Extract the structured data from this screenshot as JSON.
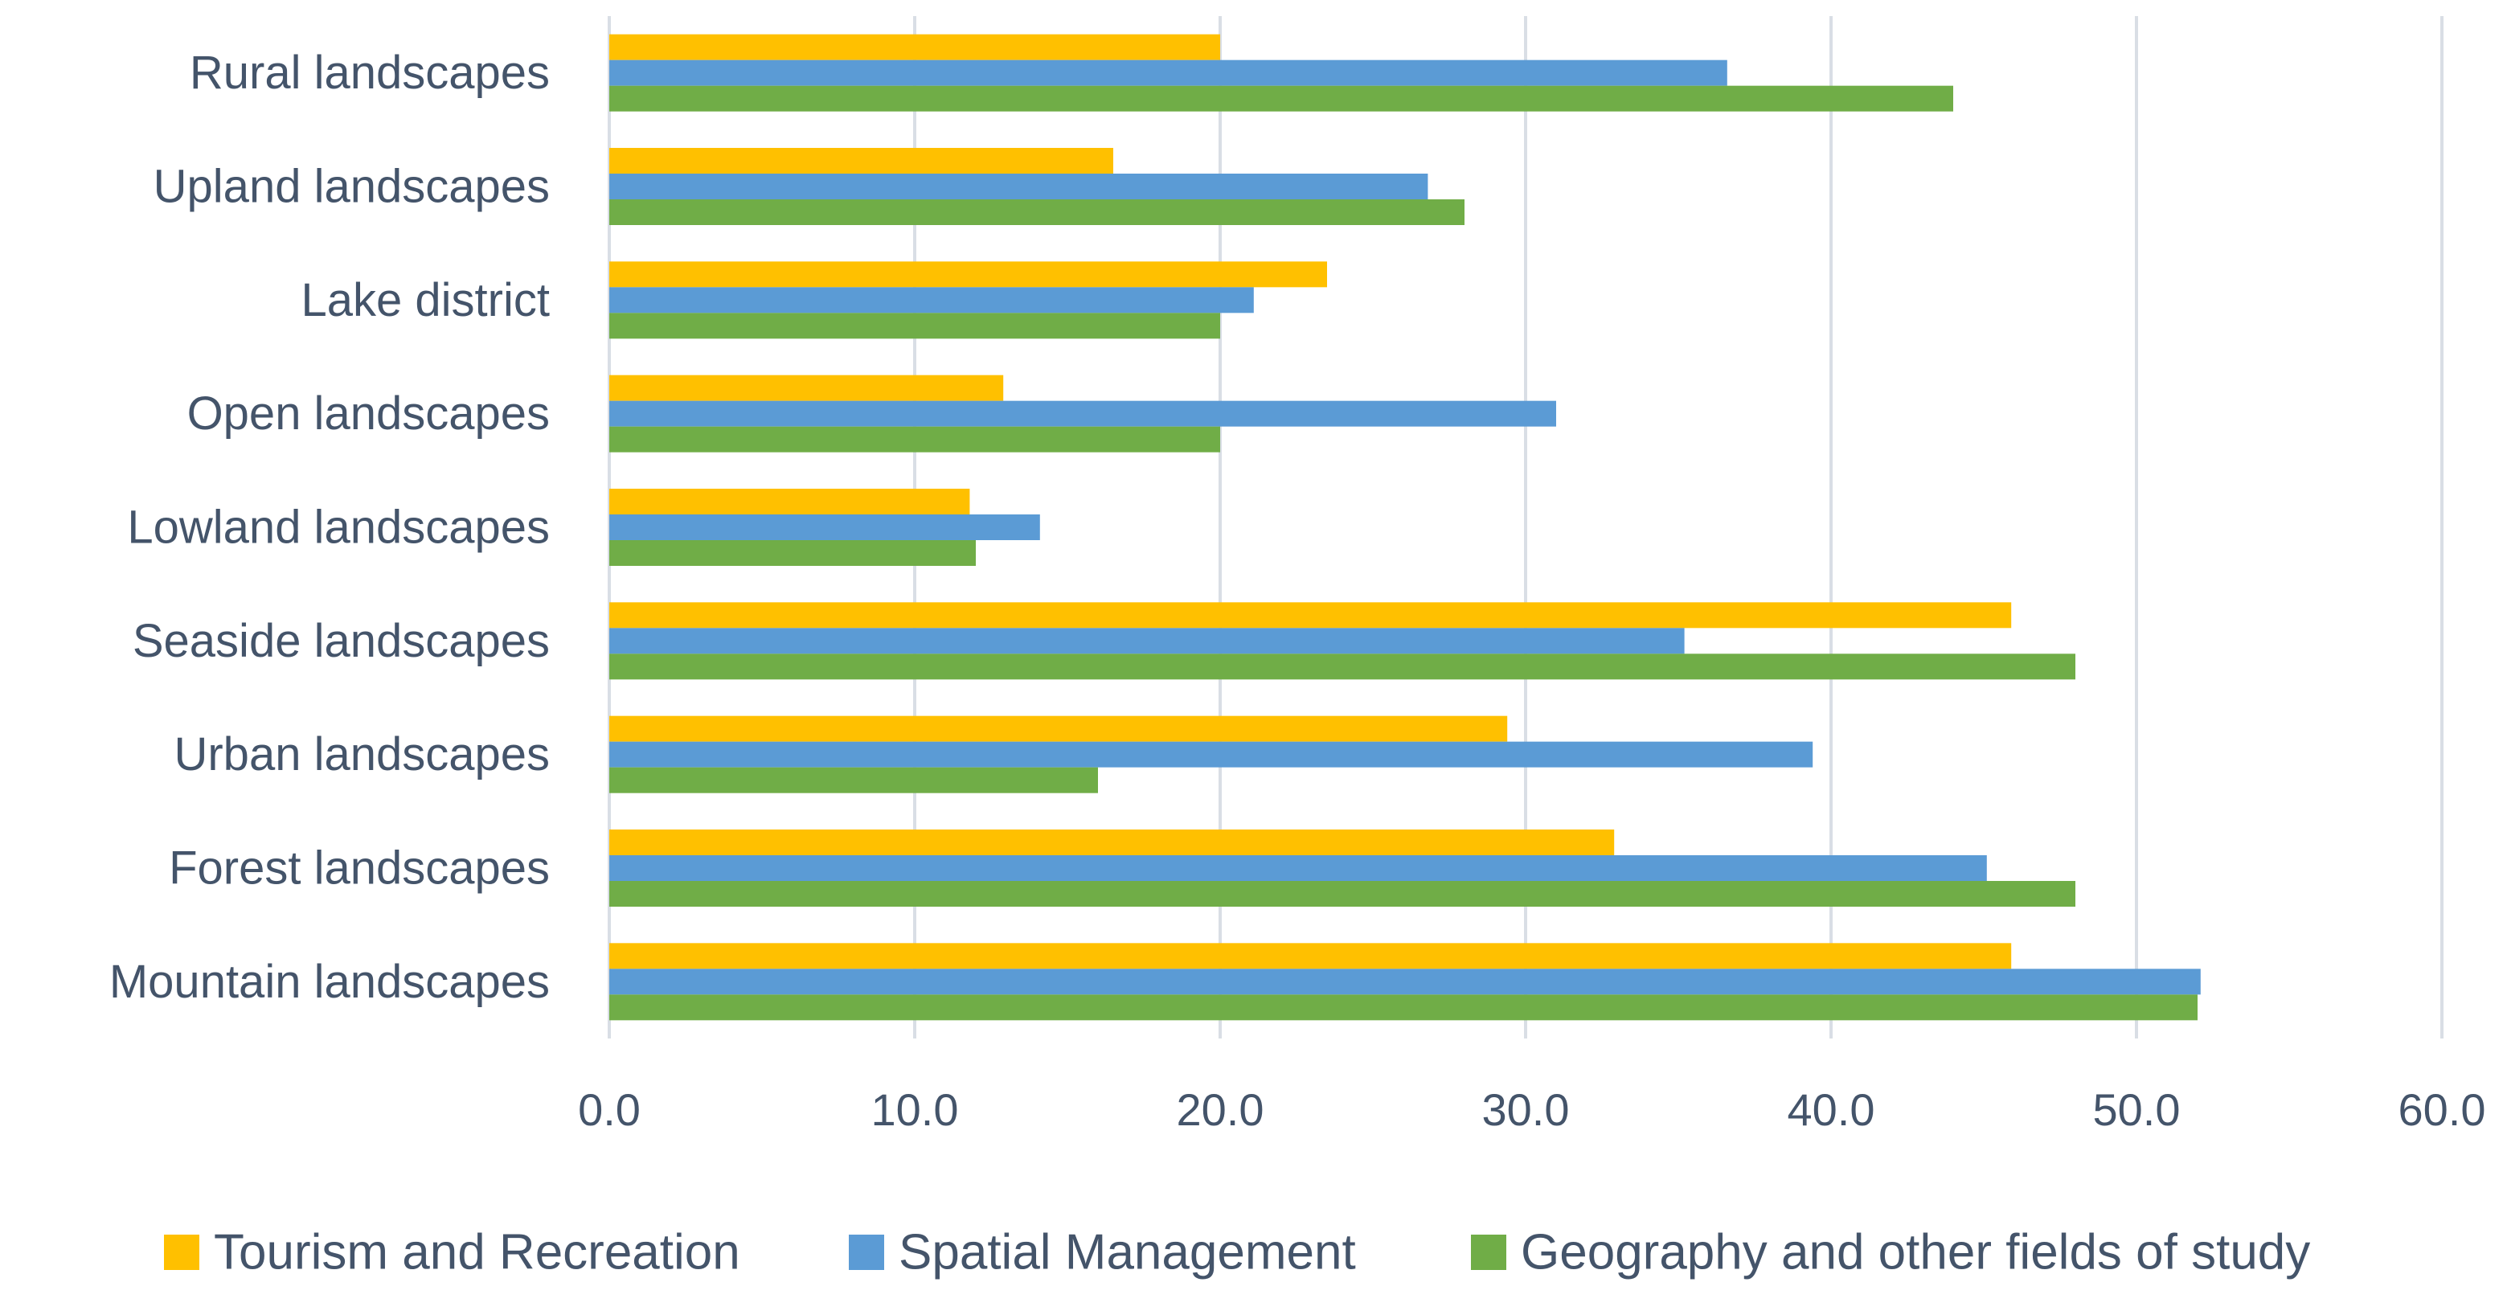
{
  "colors": {
    "tourism": "#FFC000",
    "spatial": "#5B9BD5",
    "geography": "#70AD47",
    "grid": "#D9DEE5",
    "text": "#44546A"
  },
  "chart_data": {
    "type": "bar",
    "orientation": "horizontal",
    "categories": [
      "Rural landscapes",
      "Upland landscapes",
      "Lake district",
      "Open landscapes",
      "Lowland landscapes",
      "Seaside landscapes",
      "Urban landscapes",
      "Forest landscapes",
      "Mountain landscapes"
    ],
    "series": [
      {
        "name": "Tourism and Recreation",
        "color": "#FFC000",
        "values": [
          20.0,
          16.5,
          23.5,
          12.9,
          11.8,
          45.9,
          29.4,
          32.9,
          45.9
        ]
      },
      {
        "name": "Spatial Management",
        "color": "#5B9BD5",
        "values": [
          36.6,
          26.8,
          21.1,
          31.0,
          14.1,
          35.2,
          39.4,
          45.1,
          52.1
        ]
      },
      {
        "name": "Geography and other fields of study",
        "color": "#70AD47",
        "values": [
          44.0,
          28.0,
          20.0,
          20.0,
          12.0,
          48.0,
          16.0,
          48.0,
          52.0
        ]
      }
    ],
    "xlim": [
      0,
      60
    ],
    "xticks": [
      "0.0",
      "10.0",
      "20.0",
      "30.0",
      "40.0",
      "50.0",
      "60.0"
    ],
    "grid": "vertical",
    "legend": "bottom"
  }
}
